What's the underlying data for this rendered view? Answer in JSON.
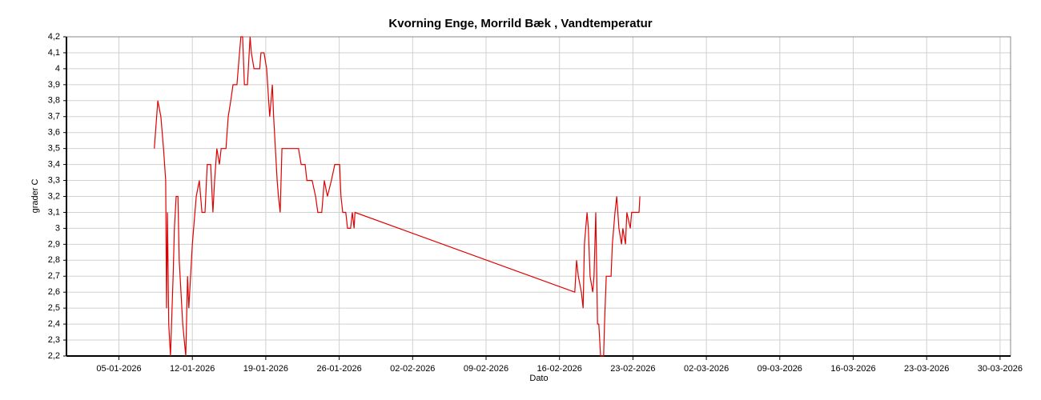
{
  "chart_data": {
    "type": "line",
    "title": "Kvorning Enge, Morrild Bæk , Vandtemperatur",
    "x_label": "Dato",
    "y_label": "grader C",
    "xlim": [
      "2025-12-31 00:00",
      "2026-03-31 00:00"
    ],
    "xticks": [
      {
        "value": "2026-01-05 00:00",
        "label": "05-01-2026"
      },
      {
        "value": "2026-01-12 00:00",
        "label": "12-01-2026"
      },
      {
        "value": "2026-01-19 00:00",
        "label": "19-01-2026"
      },
      {
        "value": "2026-01-26 00:00",
        "label": "26-01-2026"
      },
      {
        "value": "2026-02-02 00:00",
        "label": "02-02-2026"
      },
      {
        "value": "2026-02-09 00:00",
        "label": "09-02-2026"
      },
      {
        "value": "2026-02-16 00:00",
        "label": "16-02-2026"
      },
      {
        "value": "2026-02-23 00:00",
        "label": "23-02-2026"
      },
      {
        "value": "2026-03-02 00:00",
        "label": "02-03-2026"
      },
      {
        "value": "2026-03-09 00:00",
        "label": "09-03-2026"
      },
      {
        "value": "2026-03-16 00:00",
        "label": "16-03-2026"
      },
      {
        "value": "2026-03-23 00:00",
        "label": "23-03-2026"
      },
      {
        "value": "2026-03-30 00:00",
        "label": "30-03-2026"
      }
    ],
    "ylim": [
      2.2,
      4.2
    ],
    "yticks": [
      {
        "value": 2.2,
        "label": "2,2"
      },
      {
        "value": 2.3,
        "label": "2,3"
      },
      {
        "value": 2.4,
        "label": "2,4"
      },
      {
        "value": 2.5,
        "label": "2,5"
      },
      {
        "value": 2.6,
        "label": "2,6"
      },
      {
        "value": 2.7,
        "label": "2,7"
      },
      {
        "value": 2.8,
        "label": "2,8"
      },
      {
        "value": 2.9,
        "label": "2,9"
      },
      3,
      {
        "value": 3.1,
        "label": "3,1"
      },
      {
        "value": 3.2,
        "label": "3,2"
      },
      {
        "value": 3.3,
        "label": "3,3"
      },
      {
        "value": 3.4,
        "label": "3,4"
      },
      {
        "value": 3.5,
        "label": "3,5"
      },
      {
        "value": 3.6,
        "label": "3,6"
      },
      {
        "value": 3.7,
        "label": "3,7"
      },
      {
        "value": 3.8,
        "label": "3,8"
      },
      {
        "value": 3.9,
        "label": "3,9"
      },
      4,
      {
        "value": 4.1,
        "label": "4,1"
      },
      {
        "value": 4.2,
        "label": "4,2"
      }
    ],
    "grid": true,
    "series": [
      {
        "color": "#e00000",
        "x": [
          "2026-01-08 09:00",
          "2026-01-08 17:00",
          "2026-01-09 00:00",
          "2026-01-09 06:00",
          "2026-01-09 11:00",
          "2026-01-09 13:00",
          "2026-01-09 15:00",
          "2026-01-09 18:00",
          "2026-01-09 22:00",
          "2026-01-10 04:00",
          "2026-01-10 07:00",
          "2026-01-10 11:00",
          "2026-01-10 15:00",
          "2026-01-10 18:00",
          "2026-01-10 22:00",
          "2026-01-11 02:00",
          "2026-01-11 09:00",
          "2026-01-11 13:00",
          "2026-01-11 16:00",
          "2026-01-11 20:00",
          "2026-01-12 00:00",
          "2026-01-12 03:00",
          "2026-01-12 09:00",
          "2026-01-12 16:00",
          "2026-01-12 22:00",
          "2026-01-13 05:00",
          "2026-01-13 10:00",
          "2026-01-13 18:00",
          "2026-01-13 23:00",
          "2026-01-14 03:00",
          "2026-01-14 08:00",
          "2026-01-14 14:00",
          "2026-01-14 18:00",
          "2026-01-15 05:00",
          "2026-01-15 10:00",
          "2026-01-15 16:00",
          "2026-01-15 21:00",
          "2026-01-16 06:00",
          "2026-01-16 12:00",
          "2026-01-16 15:00",
          "2026-01-16 19:00",
          "2026-01-16 23:00",
          "2026-01-17 06:00",
          "2026-01-17 12:00",
          "2026-01-17 15:00",
          "2026-01-17 21:00",
          "2026-01-18 10:00",
          "2026-01-18 13:00",
          "2026-01-18 20:00",
          "2026-01-19 02:00",
          "2026-01-19 09:00",
          "2026-01-19 15:00",
          "2026-01-19 18:00",
          "2026-01-19 22:00",
          "2026-01-20 02:00",
          "2026-01-20 05:00",
          "2026-01-20 09:00",
          "2026-01-20 13:00",
          "2026-01-22 03:00",
          "2026-01-22 09:00",
          "2026-01-22 18:00",
          "2026-01-22 22:00",
          "2026-01-23 10:00",
          "2026-01-23 18:00",
          "2026-01-23 23:00",
          "2026-01-24 08:00",
          "2026-01-24 14:00",
          "2026-01-24 21:00",
          "2026-01-25 06:00",
          "2026-01-25 14:00",
          "2026-01-26 01:00",
          "2026-01-26 04:00",
          "2026-01-26 08:00",
          "2026-01-26 15:00",
          "2026-01-26 19:00",
          "2026-01-27 02:00",
          "2026-01-27 06:00",
          "2026-01-27 10:00",
          "2026-01-27 12:00",
          "2026-02-17 11:00",
          "2026-02-17 15:00",
          "2026-02-17 19:00",
          "2026-02-18 02:00",
          "2026-02-18 06:00",
          "2026-02-18 09:00",
          "2026-02-18 15:00",
          "2026-02-18 18:00",
          "2026-02-18 22:00",
          "2026-02-19 04:00",
          "2026-02-19 07:00",
          "2026-02-19 11:00",
          "2026-02-19 15:00",
          "2026-02-19 18:00",
          "2026-02-19 22:00",
          "2026-02-20 05:00",
          "2026-02-20 07:00",
          "2026-02-20 11:00",
          "2026-02-20 22:00",
          "2026-02-21 01:00",
          "2026-02-21 07:00",
          "2026-02-21 11:00",
          "2026-02-21 16:00",
          "2026-02-21 22:00",
          "2026-02-22 01:00",
          "2026-02-22 07:00",
          "2026-02-22 10:00",
          "2026-02-22 18:00",
          "2026-02-22 21:00",
          "2026-02-23 14:00",
          "2026-02-23 16:00"
        ],
        "values": [
          3.5,
          3.8,
          3.7,
          3.5,
          3.3,
          2.5,
          3.1,
          2.4,
          2.2,
          2.7,
          3.0,
          3.2,
          3.2,
          2.8,
          2.6,
          2.4,
          2.2,
          2.7,
          2.5,
          2.7,
          2.9,
          3.0,
          3.2,
          3.3,
          3.1,
          3.1,
          3.4,
          3.4,
          3.1,
          3.3,
          3.5,
          3.4,
          3.5,
          3.5,
          3.7,
          3.8,
          3.9,
          3.9,
          4.1,
          4.2,
          4.2,
          3.9,
          3.9,
          4.2,
          4.1,
          4.0,
          4.0,
          4.1,
          4.1,
          4.0,
          3.7,
          3.9,
          3.7,
          3.5,
          3.3,
          3.2,
          3.1,
          3.5,
          3.5,
          3.4,
          3.4,
          3.3,
          3.3,
          3.2,
          3.1,
          3.1,
          3.3,
          3.2,
          3.3,
          3.4,
          3.4,
          3.2,
          3.1,
          3.1,
          3.0,
          3.0,
          3.1,
          3.0,
          3.1,
          2.6,
          2.8,
          2.7,
          2.6,
          2.5,
          2.9,
          3.1,
          3.0,
          2.7,
          2.6,
          2.7,
          3.1,
          2.4,
          2.4,
          2.2,
          2.2,
          2.4,
          2.7,
          2.7,
          2.9,
          3.1,
          3.2,
          3.0,
          2.9,
          3.0,
          2.9,
          3.1,
          3.0,
          3.1,
          3.1,
          3.2
        ]
      }
    ]
  }
}
